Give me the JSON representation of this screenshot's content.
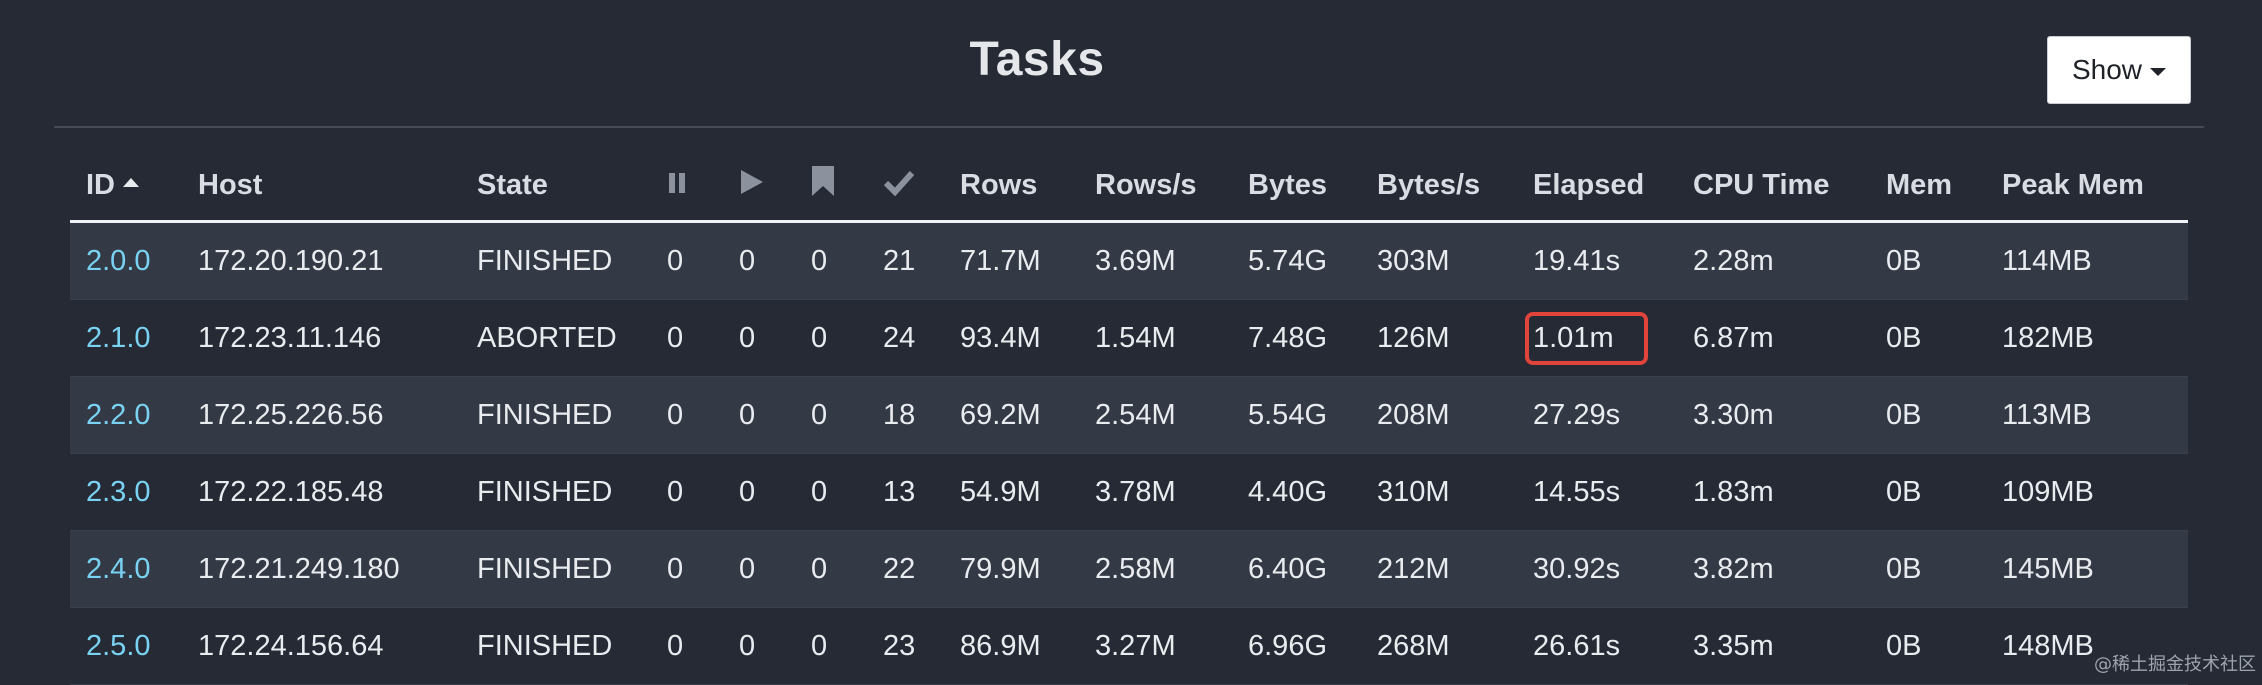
{
  "page": {
    "title": "Tasks",
    "show_button": "Show"
  },
  "icons": {
    "paused": "pause-icon",
    "running": "play-icon",
    "blocked": "bookmark-icon",
    "finished": "checkmark-icon",
    "sort": "sort-ascending-icon",
    "dropdown": "caret-down-icon"
  },
  "colors": {
    "background": "#252a35",
    "row_alt": "#333945",
    "link": "#79d2f2",
    "highlight_border": "#e0443a"
  },
  "table": {
    "columns": {
      "id": "ID",
      "host": "Host",
      "state": "State",
      "rows": "Rows",
      "rows_per_s": "Rows/s",
      "bytes": "Bytes",
      "bytes_per_s": "Bytes/s",
      "elapsed": "Elapsed",
      "cpu_time": "CPU Time",
      "mem": "Mem",
      "peak_mem": "Peak Mem"
    },
    "rows": [
      {
        "id": "2.0.0",
        "host": "172.20.190.21",
        "state": "FINISHED",
        "paused": "0",
        "running": "0",
        "blocked": "0",
        "finished": "21",
        "rows": "71.7M",
        "rows_per_s": "3.69M",
        "bytes": "5.74G",
        "bytes_per_s": "303M",
        "elapsed": "19.41s",
        "cpu_time": "2.28m",
        "mem": "0B",
        "peak_mem": "114MB"
      },
      {
        "id": "2.1.0",
        "host": "172.23.11.146",
        "state": "ABORTED",
        "paused": "0",
        "running": "0",
        "blocked": "0",
        "finished": "24",
        "rows": "93.4M",
        "rows_per_s": "1.54M",
        "bytes": "7.48G",
        "bytes_per_s": "126M",
        "elapsed": "1.01m",
        "cpu_time": "6.87m",
        "mem": "0B",
        "peak_mem": "182MB"
      },
      {
        "id": "2.2.0",
        "host": "172.25.226.56",
        "state": "FINISHED",
        "paused": "0",
        "running": "0",
        "blocked": "0",
        "finished": "18",
        "rows": "69.2M",
        "rows_per_s": "2.54M",
        "bytes": "5.54G",
        "bytes_per_s": "208M",
        "elapsed": "27.29s",
        "cpu_time": "3.30m",
        "mem": "0B",
        "peak_mem": "113MB"
      },
      {
        "id": "2.3.0",
        "host": "172.22.185.48",
        "state": "FINISHED",
        "paused": "0",
        "running": "0",
        "blocked": "0",
        "finished": "13",
        "rows": "54.9M",
        "rows_per_s": "3.78M",
        "bytes": "4.40G",
        "bytes_per_s": "310M",
        "elapsed": "14.55s",
        "cpu_time": "1.83m",
        "mem": "0B",
        "peak_mem": "109MB"
      },
      {
        "id": "2.4.0",
        "host": "172.21.249.180",
        "state": "FINISHED",
        "paused": "0",
        "running": "0",
        "blocked": "0",
        "finished": "22",
        "rows": "79.9M",
        "rows_per_s": "2.58M",
        "bytes": "6.40G",
        "bytes_per_s": "212M",
        "elapsed": "30.92s",
        "cpu_time": "3.82m",
        "mem": "0B",
        "peak_mem": "145MB"
      },
      {
        "id": "2.5.0",
        "host": "172.24.156.64",
        "state": "FINISHED",
        "paused": "0",
        "running": "0",
        "blocked": "0",
        "finished": "23",
        "rows": "86.9M",
        "rows_per_s": "3.27M",
        "bytes": "6.96G",
        "bytes_per_s": "268M",
        "elapsed": "26.61s",
        "cpu_time": "3.35m",
        "mem": "0B",
        "peak_mem": "148MB"
      }
    ]
  },
  "watermark": "@稀土掘金技术社区"
}
